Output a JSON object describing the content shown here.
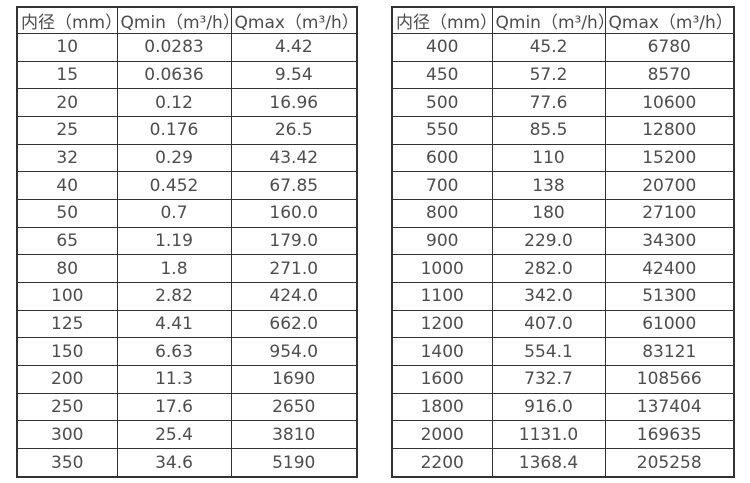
{
  "colors": {
    "border": "#333333",
    "text": "#4d4d4d",
    "background": "#ffffff"
  },
  "tables": [
    {
      "name": "flow-table-left",
      "headers": [
        "内径（mm）",
        "Qmin（m³/h）",
        "Qmax（m³/h）"
      ],
      "rows": [
        [
          "10",
          "0.0283",
          "4.42"
        ],
        [
          "15",
          "0.0636",
          "9.54"
        ],
        [
          "20",
          "0.12",
          "16.96"
        ],
        [
          "25",
          "0.176",
          "26.5"
        ],
        [
          "32",
          "0.29",
          "43.42"
        ],
        [
          "40",
          "0.452",
          "67.85"
        ],
        [
          "50",
          "0.7",
          "160.0"
        ],
        [
          "65",
          "1.19",
          "179.0"
        ],
        [
          "80",
          "1.8",
          "271.0"
        ],
        [
          "100",
          "2.82",
          "424.0"
        ],
        [
          "125",
          "4.41",
          "662.0"
        ],
        [
          "150",
          "6.63",
          "954.0"
        ],
        [
          "200",
          "11.3",
          "1690"
        ],
        [
          "250",
          "17.6",
          "2650"
        ],
        [
          "300",
          "25.4",
          "3810"
        ],
        [
          "350",
          "34.6",
          "5190"
        ]
      ]
    },
    {
      "name": "flow-table-right",
      "headers": [
        "内径（mm）",
        "Qmin（m³/h）",
        "Qmax（m³/h）"
      ],
      "rows": [
        [
          "400",
          "45.2",
          "6780"
        ],
        [
          "450",
          "57.2",
          "8570"
        ],
        [
          "500",
          "77.6",
          "10600"
        ],
        [
          "550",
          "85.5",
          "12800"
        ],
        [
          "600",
          "110",
          "15200"
        ],
        [
          "700",
          "138",
          "20700"
        ],
        [
          "800",
          "180",
          "27100"
        ],
        [
          "900",
          "229.0",
          "34300"
        ],
        [
          "1000",
          "282.0",
          "42400"
        ],
        [
          "1100",
          "342.0",
          "51300"
        ],
        [
          "1200",
          "407.0",
          "61000"
        ],
        [
          "1400",
          "554.1",
          "83121"
        ],
        [
          "1600",
          "732.7",
          "108566"
        ],
        [
          "1800",
          "916.0",
          "137404"
        ],
        [
          "2000",
          "1131.0",
          "169635"
        ],
        [
          "2200",
          "1368.4",
          "205258"
        ]
      ]
    }
  ]
}
